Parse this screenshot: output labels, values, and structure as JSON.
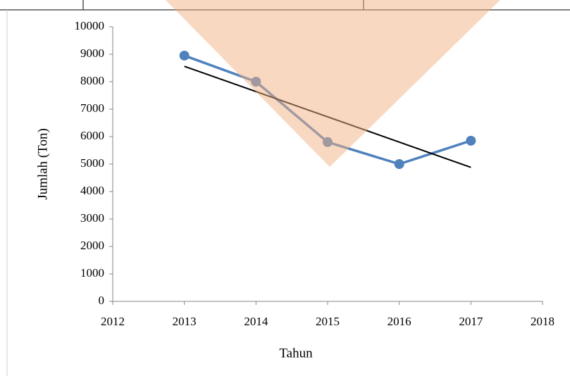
{
  "chart_data": {
    "type": "line",
    "x_label": "Tahun",
    "y_label": "Jumlah (Ton)",
    "x": [
      2013,
      2014,
      2015,
      2016,
      2017
    ],
    "series": [
      {
        "color": "#4f81bd",
        "values": [
          8950,
          8000,
          5800,
          5000,
          5850
        ]
      }
    ],
    "trendline": {
      "color": "#000000",
      "x": [
        2013,
        2017
      ],
      "values": [
        8560,
        4880
      ]
    },
    "xlim": [
      2012,
      2018
    ],
    "xticks": [
      2012,
      2013,
      2014,
      2015,
      2016,
      2017,
      2018
    ],
    "ylim": [
      0,
      10000
    ],
    "yticks": [
      0,
      1000,
      2000,
      3000,
      4000,
      5000,
      6000,
      7000,
      8000,
      9000,
      10000
    ],
    "grid": false
  }
}
